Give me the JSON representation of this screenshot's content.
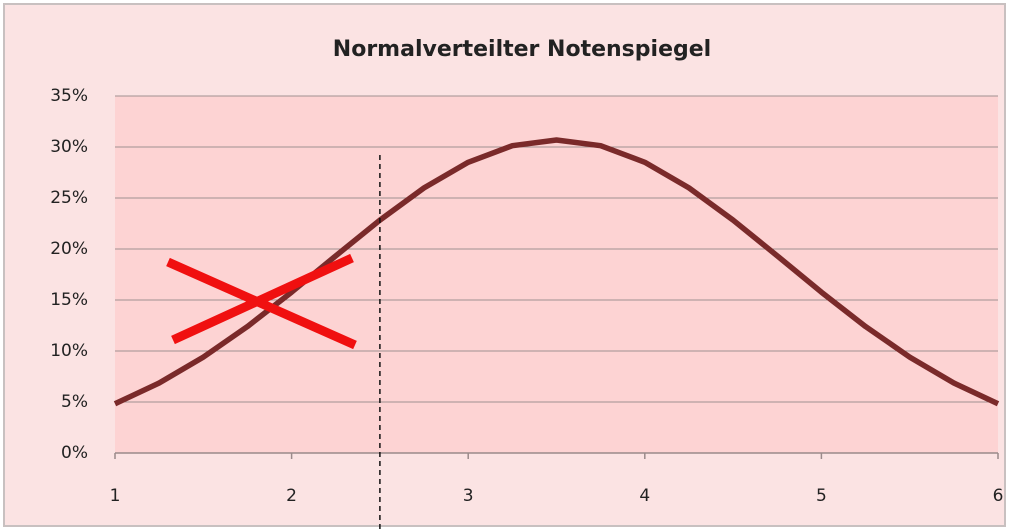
{
  "chart_data": {
    "type": "line",
    "title": "Normalverteilter Notenspiegel",
    "x": [
      1,
      1.25,
      1.5,
      1.75,
      2,
      2.25,
      2.5,
      2.75,
      3,
      3.25,
      3.5,
      3.75,
      4,
      4.25,
      4.5,
      4.75,
      5,
      5.25,
      5.5,
      5.75,
      6
    ],
    "values": [
      4.83,
      6.86,
      9.4,
      12.4,
      15.77,
      19.33,
      22.83,
      25.99,
      28.5,
      30.13,
      30.69,
      30.13,
      28.5,
      25.99,
      22.83,
      19.33,
      15.77,
      12.4,
      9.4,
      6.86,
      4.83
    ],
    "color": "#7a2a2a",
    "xlim": [
      1,
      6
    ],
    "xticks": [
      1,
      2,
      3,
      4,
      5,
      6
    ],
    "ylim": [
      0,
      35
    ],
    "yticks": [
      {
        "value": 0,
        "label": "0%"
      },
      {
        "value": 5,
        "label": "5%"
      },
      {
        "value": 10,
        "label": "10%"
      },
      {
        "value": 15,
        "label": "15%"
      },
      {
        "value": 20,
        "label": "20%"
      },
      {
        "value": 25,
        "label": "25%"
      },
      {
        "value": 30,
        "label": "30%"
      },
      {
        "value": 35,
        "label": "35%"
      }
    ],
    "grid": true,
    "vline_x": 2.5
  }
}
